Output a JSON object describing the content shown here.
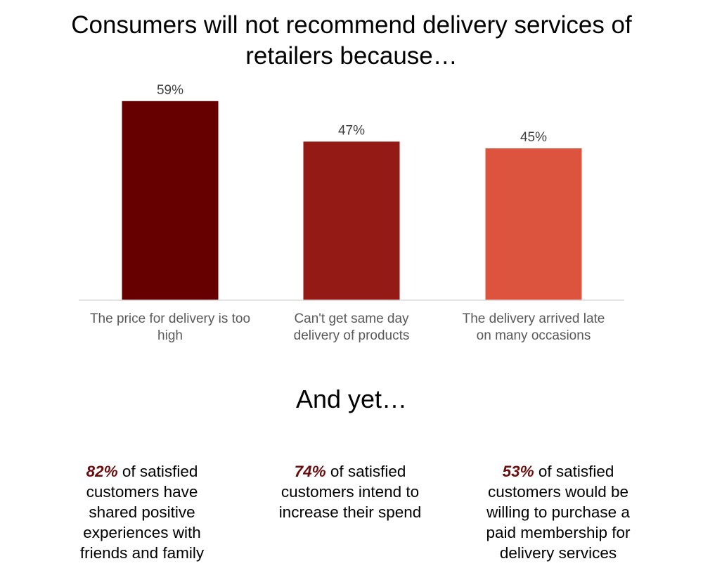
{
  "colors": {
    "bar1": "#660000",
    "bar2": "#931a15",
    "bar3": "#dc533e",
    "highlight": "#6a0f0f"
  },
  "chart_data": {
    "type": "bar",
    "title": "Consumers will not recommend delivery services of retailers because…",
    "categories": [
      [
        "The price for delivery is too",
        "high"
      ],
      [
        "Can't get same day",
        "delivery of products"
      ],
      [
        "The delivery arrived late",
        "on many occasions"
      ]
    ],
    "values": [
      59,
      47,
      45
    ],
    "value_labels": [
      "59%",
      "47%",
      "45%"
    ],
    "unit": "%",
    "ylim": [
      0,
      60
    ],
    "grid": false,
    "legend": "none"
  },
  "section": {
    "heading": "And yet…"
  },
  "stats": [
    {
      "pct": "82%",
      "text": "of satisfied customers have shared positive experiences with friends and family"
    },
    {
      "pct": "74%",
      "text": "of satisfied customers intend to increase their spend"
    },
    {
      "pct": "53%",
      "text": "of satisfied customers would be willing to purchase a paid membership for delivery services"
    }
  ]
}
